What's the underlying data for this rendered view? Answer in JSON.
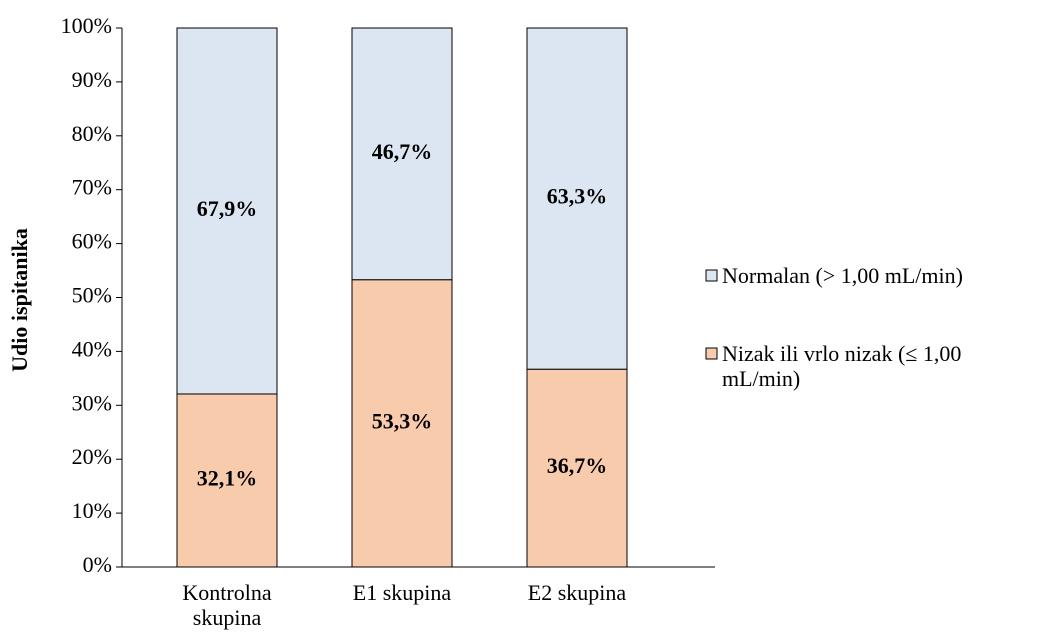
{
  "chart_data": {
    "type": "stacked_bar",
    "categories": [
      "Kontrolna skupina",
      "E1 skupina",
      "E2 skupina"
    ],
    "series": [
      {
        "name": "Nizak ili vrlo nizak (≤ 1,00 mL/min)",
        "color": "#f8cbad",
        "values": [
          32.1,
          53.3,
          36.7
        ],
        "value_labels": [
          "32,1%",
          "53,3%",
          "36,7%"
        ]
      },
      {
        "name": "Normalan (> 1,00 mL/min)",
        "color": "#dce6f2",
        "values": [
          67.9,
          46.7,
          63.3
        ],
        "value_labels": [
          "67,9%",
          "46,7%",
          "63,3%"
        ]
      }
    ],
    "y_label": "Udio ispitanika",
    "ylim": [
      0,
      100
    ],
    "yticks": [
      {
        "value": 0,
        "label": "0%"
      },
      {
        "value": 10,
        "label": "10%"
      },
      {
        "value": 20,
        "label": "20%"
      },
      {
        "value": 30,
        "label": "30%"
      },
      {
        "value": 40,
        "label": "40%"
      },
      {
        "value": 50,
        "label": "50%"
      },
      {
        "value": 60,
        "label": "60%"
      },
      {
        "value": 70,
        "label": "70%"
      },
      {
        "value": 80,
        "label": "80%"
      },
      {
        "value": 90,
        "label": "90%"
      },
      {
        "value": 100,
        "label": "100%"
      }
    ],
    "legend": "right"
  }
}
